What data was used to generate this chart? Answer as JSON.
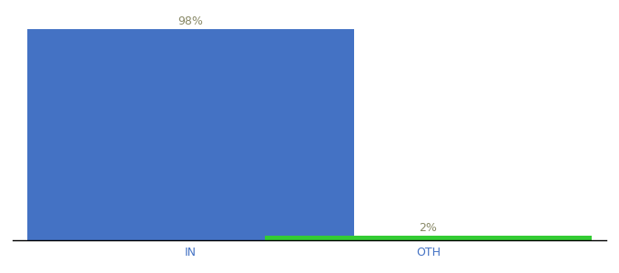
{
  "categories": [
    "IN",
    "OTH"
  ],
  "values": [
    98,
    2
  ],
  "labels": [
    "98%",
    "2%"
  ],
  "bar_colors": [
    "#4472c4",
    "#33cc33"
  ],
  "background_color": "#ffffff",
  "ylim": [
    0,
    105
  ],
  "bar_width": 0.55,
  "label_color": "#888866",
  "xlabel_color": "#4472c4",
  "x_positions": [
    0.3,
    0.7
  ],
  "xlim": [
    0,
    1.0
  ]
}
